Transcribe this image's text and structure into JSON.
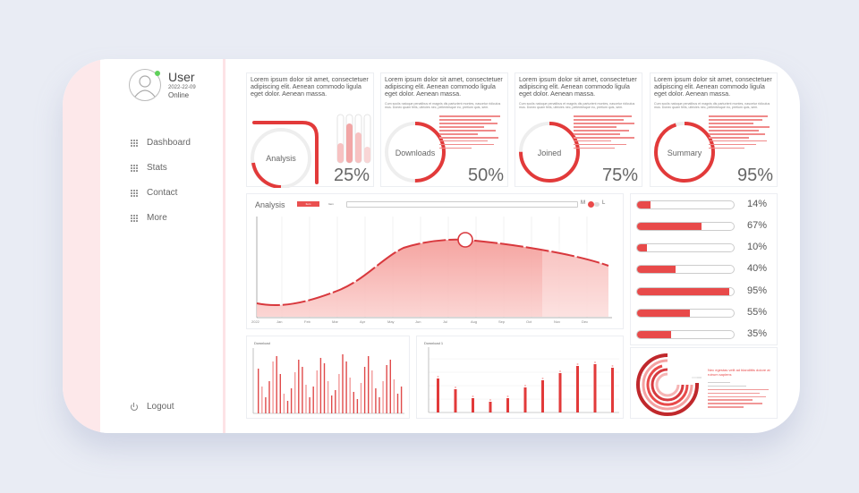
{
  "user": {
    "name": "User",
    "date": "2022-22-09",
    "status": "Online"
  },
  "nav": [
    {
      "label": "Dashboard"
    },
    {
      "label": "Stats"
    },
    {
      "label": "Contact"
    },
    {
      "label": "More"
    }
  ],
  "logout": {
    "label": "Logout"
  },
  "kpi": [
    {
      "text": "Lorem ipsum dolor sit amet, consectetuer adipiscing elit. Aenean commodo ligula eget dolor. Aenean massa.",
      "label": "Analysis",
      "pct": "25%"
    },
    {
      "text": "Lorem ipsum dolor sit amet, consectetuer adipiscing elit. Aenean commodo ligula eget dolor. Aenean massa.",
      "small": "Cum sociis natoque penatibus et magnis dis parturient montes, nascetur ridiculus mus. Donec quam felis, ultricies nec, pellentesque eu, pretium quis, sem.",
      "label": "Downloads",
      "pct": "50%"
    },
    {
      "text": "Lorem ipsum dolor sit amet, consectetuer adipiscing elit. Aenean commodo ligula eget dolor. Aenean massa.",
      "small": "Cum sociis natoque penatibus et magnis dis parturient montes, nascetur ridiculus mus. Donec quam felis, ultricies nec, pellentesque eu, pretium quis, sem.",
      "label": "Joined",
      "pct": "75%"
    },
    {
      "text": "Lorem ipsum dolor sit amet, consectetuer adipiscing elit. Aenean commodo ligula eget dolor. Aenean massa.",
      "small": "Cum sociis natoque penatibus et magnis dis parturient montes, nascetur ridiculus mus. Donec quam felis, ultricies nec, pellentesque eu, pretium quis, sem.",
      "label": "Summary",
      "pct": "95%"
    }
  ],
  "analysis_chart": {
    "title": "Analysis",
    "pill_red": "Item",
    "pill_white": "Item",
    "toggle_left": "M",
    "toggle_right": "L",
    "months": [
      "2022",
      "Jan",
      "Feb",
      "Mar",
      "Apr",
      "May",
      "Jun",
      "Jul",
      "Aug",
      "Sep",
      "Oct",
      "Nov",
      "Dec"
    ]
  },
  "mini_charts": [
    {
      "title": "Download"
    },
    {
      "title": "Download 1"
    }
  ],
  "progress": [
    {
      "value": 14,
      "label": "14%"
    },
    {
      "value": 67,
      "label": "67%"
    },
    {
      "value": 10,
      "label": "10%"
    },
    {
      "value": 40,
      "label": "40%"
    },
    {
      "value": 95,
      "label": "95%"
    },
    {
      "value": 55,
      "label": "55%"
    },
    {
      "value": 35,
      "label": "35%"
    }
  ],
  "note": {
    "title": "Nec egestas velit ad blandittis dolore at rutrum sapiens"
  },
  "colors": {
    "accent": "#e84a4a",
    "accent_dark": "#c0282c",
    "pink_light": "#fde8ea",
    "background": "#e9ecf4"
  }
}
